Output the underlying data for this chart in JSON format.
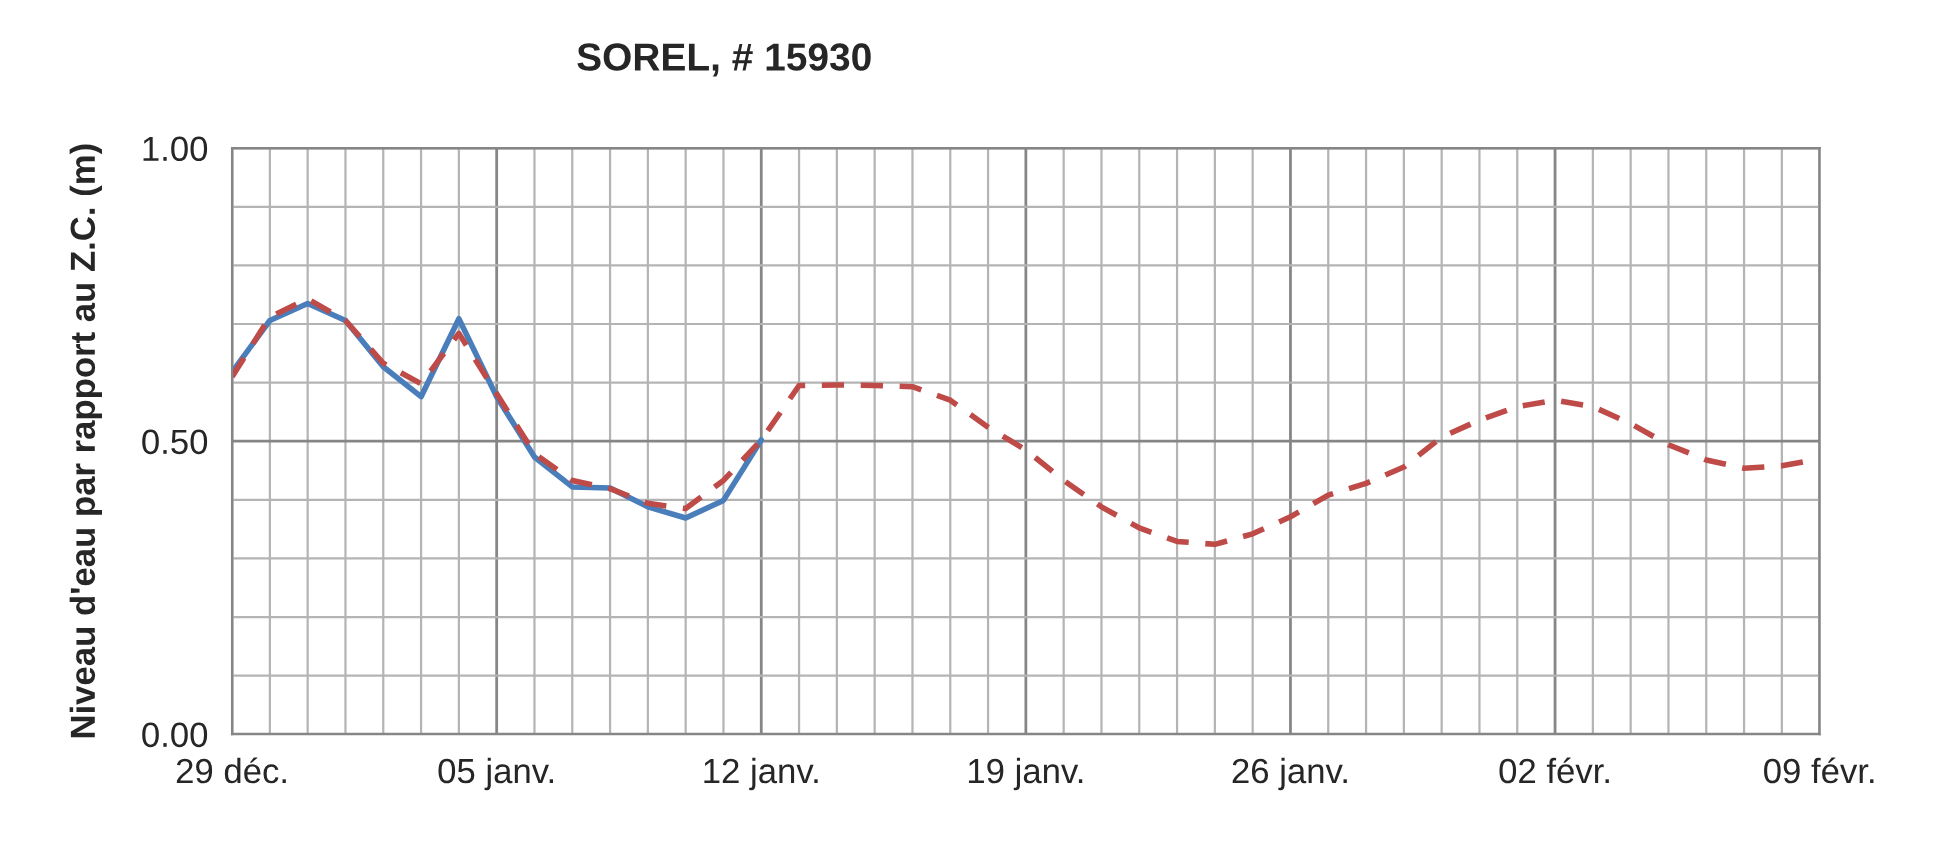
{
  "chart_data": {
    "type": "line",
    "title": "SOREL, # 15930",
    "ylabel": "Niveau d'eau par rapport au Z.C. (m)",
    "categories": [
      "29 déc.",
      null,
      null,
      null,
      null,
      null,
      null,
      "05 janv.",
      null,
      null,
      null,
      null,
      null,
      null,
      "12 janv.",
      null,
      null,
      null,
      null,
      null,
      null,
      "19 janv.",
      null,
      null,
      null,
      null,
      null,
      null,
      "26 janv.",
      null,
      null,
      null,
      null,
      null,
      null,
      "02 févr.",
      null,
      null,
      null,
      null,
      null,
      null,
      "09 févr."
    ],
    "series": [
      {
        "color": "#4a7ebb",
        "line_style": "solid",
        "values": [
          0.618,
          0.706,
          0.735,
          0.706,
          0.627,
          0.576,
          0.709,
          0.576,
          0.473,
          0.422,
          0.42,
          0.388,
          0.369,
          0.399,
          0.502,
          null,
          null,
          null,
          null,
          null,
          null,
          null,
          null,
          null,
          null,
          null,
          null,
          null,
          null,
          null,
          null,
          null,
          null,
          null,
          null,
          null,
          null,
          null,
          null,
          null,
          null,
          null,
          null
        ]
      },
      {
        "color": "#be4b48",
        "line_style": "dashed",
        "values": [
          0.61,
          0.712,
          0.743,
          0.706,
          0.633,
          0.598,
          0.684,
          0.581,
          0.479,
          0.433,
          0.419,
          0.394,
          0.385,
          0.433,
          0.502,
          0.595,
          0.596,
          0.595,
          0.593,
          0.57,
          0.524,
          0.485,
          0.433,
          0.388,
          0.352,
          0.329,
          0.324,
          0.342,
          0.371,
          0.408,
          0.428,
          0.456,
          0.507,
          0.536,
          0.559,
          0.57,
          0.559,
          0.53,
          0.494,
          0.468,
          0.454,
          0.458,
          0.47
        ]
      }
    ],
    "ylim": [
      0,
      1
    ],
    "yticks": [
      {
        "value": 0,
        "label": "0.00"
      },
      {
        "value": 0.5,
        "label": "0.50"
      },
      {
        "value": 1,
        "label": "1.00"
      }
    ],
    "grid": true,
    "legend": false,
    "marker": "none"
  }
}
